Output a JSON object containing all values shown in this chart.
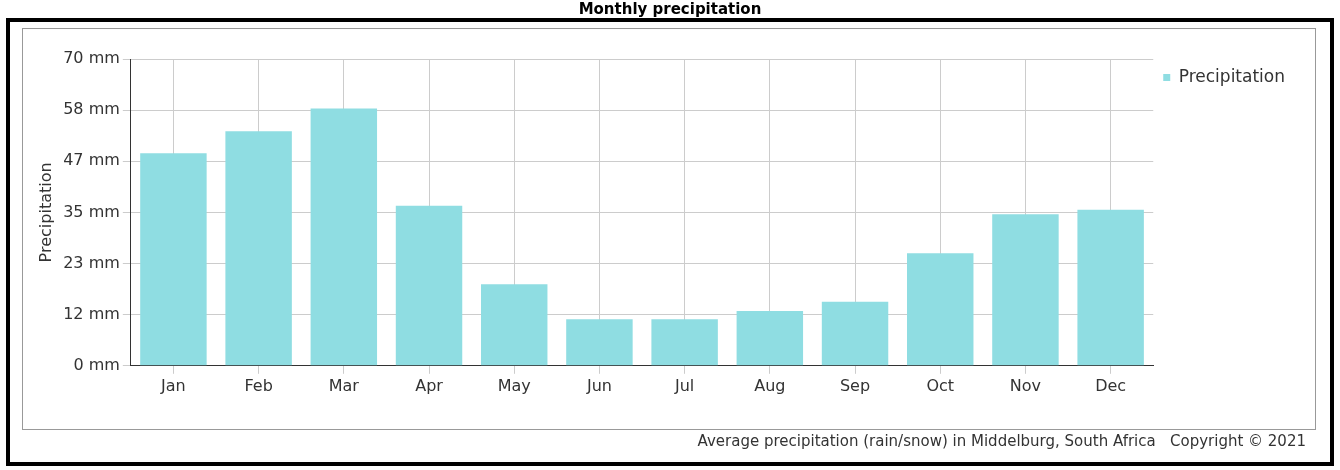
{
  "chart_data": {
    "type": "bar",
    "title": "Monthly precipitation",
    "ylabel": "Precipitation",
    "categories": [
      "Jan",
      "Feb",
      "Mar",
      "Apr",
      "May",
      "Jun",
      "Jul",
      "Aug",
      "Sep",
      "Oct",
      "Nov",
      "Dec"
    ],
    "series": [
      {
        "name": "Precipitation",
        "color": "#8fdde2",
        "values": [
          48.5,
          53.5,
          58.7,
          36.5,
          18.6,
          10.6,
          10.6,
          12.5,
          14.6,
          25.7,
          34.6,
          35.6
        ]
      }
    ],
    "ylim": [
      0,
      70
    ],
    "yticks": [
      {
        "value": 0,
        "label": "0 mm"
      },
      {
        "value": 11.67,
        "label": "12 mm"
      },
      {
        "value": 23.33,
        "label": "23 mm"
      },
      {
        "value": 35,
        "label": "35 mm"
      },
      {
        "value": 46.67,
        "label": "47 mm"
      },
      {
        "value": 58.33,
        "label": "58 mm"
      },
      {
        "value": 70,
        "label": "70 mm"
      }
    ],
    "grid": true,
    "legend": "top right",
    "annotations": [
      "Average precipitation (rain/snow) in Middelburg, South Africa   Copyright © 2021"
    ]
  }
}
